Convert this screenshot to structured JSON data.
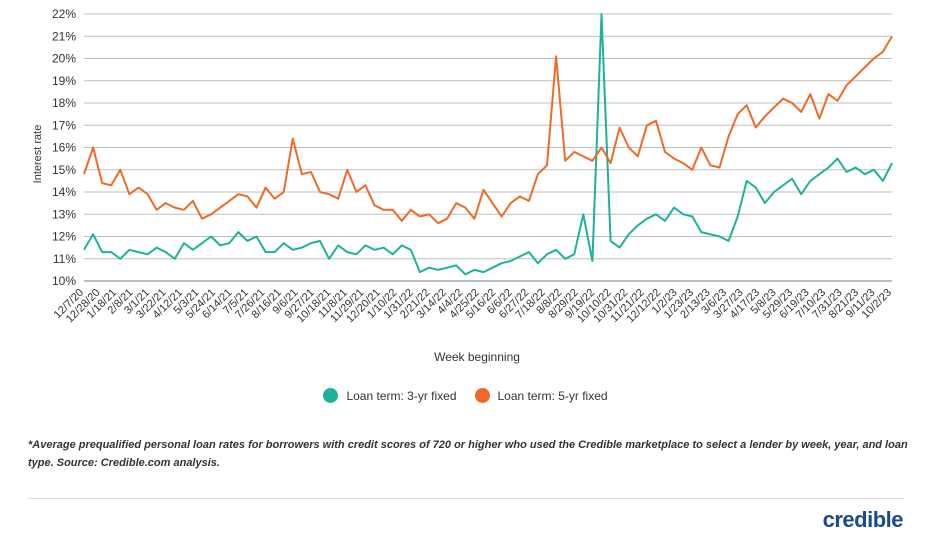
{
  "chart_data": {
    "type": "line",
    "title": "",
    "xlabel": "Week beginning",
    "ylabel": "Interest rate",
    "ylim": [
      10,
      22
    ],
    "yticks": [
      "10%",
      "11%",
      "12%",
      "13%",
      "14%",
      "15%",
      "16%",
      "17%",
      "18%",
      "19%",
      "20%",
      "21%",
      "22%"
    ],
    "x_tick_labels": [
      "12/7/20",
      "12/28/20",
      "1/18/21",
      "2/8/21",
      "3/1/21",
      "3/22/21",
      "4/12/21",
      "5/3/21",
      "5/24/21",
      "6/14/21",
      "7/5/21",
      "7/26/21",
      "8/16/21",
      "9/6/21",
      "9/27/21",
      "10/18/21",
      "11/8/21",
      "11/29/21",
      "12/20/21",
      "1/10/22",
      "1/31/22",
      "2/21/22",
      "3/14/22",
      "4/4/22",
      "4/25/22",
      "5/16/22",
      "6/6/22",
      "6/27/22",
      "7/18/22",
      "8/8/22",
      "8/29/22",
      "9/19/22",
      "10/10/22",
      "10/31/22",
      "11/21/22",
      "12/12/22",
      "1/2/23",
      "1/23/23",
      "2/13/23",
      "3/6/23",
      "3/27/23",
      "4/17/23",
      "5/8/23",
      "5/29/23",
      "6/19/23",
      "7/10/23",
      "7/31/23",
      "8/21/23",
      "9/11/23",
      "10/2/23"
    ],
    "series": [
      {
        "name": "Loan term: 3-yr fixed",
        "color": "#1db39b",
        "values": [
          11.4,
          12.1,
          11.3,
          11.3,
          11.0,
          11.4,
          11.3,
          11.2,
          11.5,
          11.3,
          11.0,
          11.7,
          11.4,
          11.7,
          12.0,
          11.6,
          11.7,
          12.2,
          11.8,
          12.0,
          11.3,
          11.3,
          11.7,
          11.4,
          11.5,
          11.7,
          11.8,
          11.0,
          11.6,
          11.3,
          11.2,
          11.6,
          11.4,
          11.5,
          11.2,
          11.6,
          11.4,
          10.4,
          10.6,
          10.5,
          10.6,
          10.7,
          10.3,
          10.5,
          10.4,
          10.6,
          10.8,
          10.9,
          11.1,
          11.3,
          10.8,
          11.2,
          11.4,
          11.0,
          11.2,
          13.0,
          10.9,
          22.0,
          11.8,
          11.5,
          12.1,
          12.5,
          12.8,
          13.0,
          12.7,
          13.3,
          13.0,
          12.9,
          12.2,
          12.1,
          12.0,
          11.8,
          12.9,
          14.5,
          14.2,
          13.5,
          14.0,
          14.3,
          14.6,
          13.9,
          14.5,
          14.8,
          15.1,
          15.5,
          14.9,
          15.1,
          14.8,
          15.0,
          14.5,
          15.3
        ]
      },
      {
        "name": "Loan term: 5-yr fixed",
        "color": "#f06a27",
        "values": [
          14.8,
          16.0,
          14.4,
          14.3,
          15.0,
          13.9,
          14.2,
          13.9,
          13.2,
          13.5,
          13.3,
          13.2,
          13.6,
          12.8,
          13.0,
          13.3,
          13.6,
          13.9,
          13.8,
          13.3,
          14.2,
          13.7,
          14.0,
          16.4,
          14.8,
          14.9,
          14.0,
          13.9,
          13.7,
          15.0,
          14.0,
          14.3,
          13.4,
          13.2,
          13.2,
          12.7,
          13.2,
          12.9,
          13.0,
          12.6,
          12.8,
          13.5,
          13.3,
          12.8,
          14.1,
          13.5,
          12.9,
          13.5,
          13.8,
          13.6,
          14.8,
          15.2,
          20.1,
          15.4,
          15.8,
          15.6,
          15.4,
          16.0,
          15.3,
          16.9,
          16.0,
          15.6,
          17.0,
          17.2,
          15.8,
          15.5,
          15.3,
          15.0,
          16.0,
          15.2,
          15.1,
          16.5,
          17.5,
          17.9,
          16.9,
          17.4,
          17.8,
          18.2,
          18.0,
          17.6,
          18.4,
          17.3,
          18.4,
          18.1,
          18.8,
          19.2,
          19.6,
          20.0,
          20.3,
          21.0
        ]
      }
    ]
  },
  "legend": {
    "series1": "Loan term: 3-yr fixed",
    "series2": "Loan term: 5-yr fixed"
  },
  "footnote": "*Average prequalified personal loan rates for borrowers with credit scores of 720 or higher who used the Credible marketplace to select a lender by week, year, and loan type. Source: Credible.com analysis.",
  "brand": "credible"
}
